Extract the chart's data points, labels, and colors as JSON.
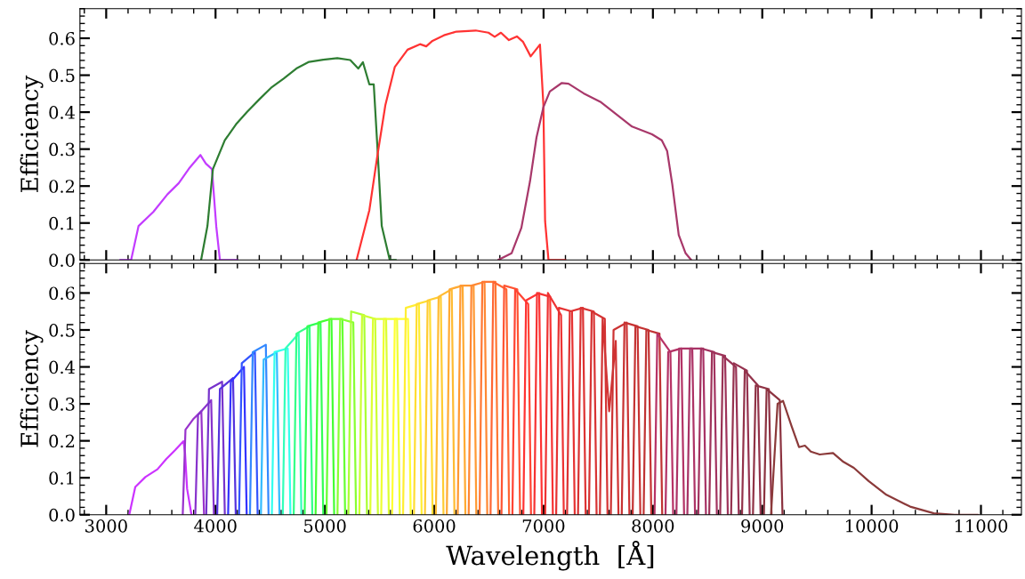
{
  "chart_data": [
    {
      "type": "line",
      "ylabel": "Efficiency",
      "xlim": [
        2760,
        11370
      ],
      "xticks": [
        3000,
        4000,
        5000,
        6000,
        7000,
        8000,
        9000,
        10000,
        11000
      ],
      "ylim": [
        0,
        0.68
      ],
      "yticks": [
        {
          "value": 0,
          "label": "0.0"
        },
        0.1,
        0.2,
        0.3,
        0.4,
        0.5,
        0.6
      ],
      "tick_labels": "y",
      "series": [
        {
          "color": "#c33cff",
          "x": [
            3127,
            3228,
            3296,
            3431,
            3561,
            3664,
            3764,
            3862,
            3911,
            3967,
            4007,
            4040,
            4200
          ],
          "values": [
            0,
            0,
            0.092,
            0.13,
            0.178,
            0.208,
            0.25,
            0.284,
            0.261,
            0.246,
            0.09,
            0,
            0
          ]
        },
        {
          "color": "#2e7d32",
          "x": [
            3868,
            3926,
            3976,
            4085,
            4187,
            4289,
            4405,
            4508,
            4623,
            4739,
            4855,
            4985,
            5114,
            5232,
            5305,
            5348,
            5407,
            5447,
            5480,
            5520,
            5593,
            5650
          ],
          "values": [
            0,
            0.092,
            0.246,
            0.324,
            0.367,
            0.401,
            0.436,
            0.466,
            0.491,
            0.518,
            0.536,
            0.542,
            0.546,
            0.541,
            0.518,
            0.535,
            0.475,
            0.475,
            0.307,
            0.092,
            0,
            0
          ]
        },
        {
          "color": "#ff3333",
          "x": [
            5290,
            5407,
            5480,
            5553,
            5639,
            5756,
            5870,
            5927,
            5984,
            6089,
            6203,
            6379,
            6496,
            6553,
            6610,
            6683,
            6756,
            6813,
            6882,
            6967,
            6998,
            7014,
            7045,
            7200
          ],
          "values": [
            0,
            0.135,
            0.282,
            0.419,
            0.522,
            0.569,
            0.584,
            0.578,
            0.593,
            0.608,
            0.618,
            0.621,
            0.615,
            0.604,
            0.615,
            0.595,
            0.605,
            0.59,
            0.551,
            0.583,
            0.422,
            0.105,
            0,
            0
          ]
        },
        {
          "color": "#a8386a",
          "x": [
            6585,
            6707,
            6797,
            6876,
            6935,
            6998,
            7057,
            7167,
            7228,
            7366,
            7519,
            7809,
            7992,
            8081,
            8130,
            8177,
            8236,
            8299,
            8350
          ],
          "values": [
            0,
            0.018,
            0.087,
            0.213,
            0.331,
            0.413,
            0.456,
            0.479,
            0.477,
            0.451,
            0.428,
            0.361,
            0.34,
            0.324,
            0.295,
            0.205,
            0.068,
            0.018,
            0
          ]
        }
      ]
    },
    {
      "type": "line",
      "xlabel": "Wavelength  [Å]",
      "ylabel": "Efficiency",
      "xlim": [
        2760,
        11370
      ],
      "xticks": [
        3000,
        4000,
        5000,
        6000,
        7000,
        8000,
        9000,
        10000,
        11000
      ],
      "ylim": [
        0,
        0.68
      ],
      "yticks": [
        {
          "value": 0,
          "label": "0.0"
        },
        0.1,
        0.2,
        0.3,
        0.4,
        0.5,
        0.6
      ],
      "series": [
        {
          "color": "#cc33ff",
          "x": [
            3211,
            3266,
            3358,
            3469,
            3550,
            3631,
            3707,
            3721,
            3740,
            3780
          ],
          "values": [
            0,
            0.075,
            0.102,
            0.123,
            0.151,
            0.175,
            0.199,
            0.167,
            0.07,
            0
          ]
        },
        {
          "color": "#9933cc",
          "x": [
            3700,
            3725,
            3800,
            3870,
            3895
          ],
          "values": [
            0,
            0.23,
            0.26,
            0.28,
            0
          ]
        },
        {
          "color": "#8833cc",
          "x": [
            3815,
            3840,
            3960,
            3985
          ],
          "values": [
            0,
            0.27,
            0.31,
            0
          ]
        },
        {
          "color": "#7733cc",
          "x": [
            3915,
            3940,
            4060,
            4085
          ],
          "values": [
            0,
            0.34,
            0.36,
            0
          ]
        },
        {
          "color": "#5533dd",
          "x": [
            4015,
            4040,
            4160,
            4185
          ],
          "values": [
            0,
            0.34,
            0.37,
            0
          ]
        },
        {
          "color": "#3333ff",
          "x": [
            4115,
            4140,
            4260,
            4285
          ],
          "values": [
            0,
            0.36,
            0.4,
            0
          ]
        },
        {
          "color": "#3355ff",
          "x": [
            4215,
            4240,
            4360,
            4385
          ],
          "values": [
            0,
            0.41,
            0.44,
            0
          ]
        },
        {
          "color": "#3388ff",
          "x": [
            4315,
            4340,
            4460,
            4485
          ],
          "values": [
            0,
            0.44,
            0.46,
            0
          ]
        },
        {
          "color": "#33bbff",
          "x": [
            4415,
            4440,
            4560,
            4585
          ],
          "values": [
            0,
            0.42,
            0.44,
            0
          ]
        },
        {
          "color": "#33ffee",
          "x": [
            4515,
            4540,
            4660,
            4685
          ],
          "values": [
            0,
            0.44,
            0.45,
            0
          ]
        },
        {
          "color": "#33ffbb",
          "x": [
            4615,
            4640,
            4760,
            4785
          ],
          "values": [
            0,
            0.45,
            0.49,
            0
          ]
        },
        {
          "color": "#33ff88",
          "x": [
            4715,
            4740,
            4860,
            4885
          ],
          "values": [
            0,
            0.49,
            0.51,
            0
          ]
        },
        {
          "color": "#33ff55",
          "x": [
            4815,
            4840,
            4960,
            4985
          ],
          "values": [
            0,
            0.51,
            0.52,
            0
          ]
        },
        {
          "color": "#44ff33",
          "x": [
            4915,
            4940,
            5060,
            5085
          ],
          "values": [
            0,
            0.52,
            0.53,
            0
          ]
        },
        {
          "color": "#66ff33",
          "x": [
            5015,
            5040,
            5160,
            5185
          ],
          "values": [
            0,
            0.53,
            0.53,
            0
          ]
        },
        {
          "color": "#88ff33",
          "x": [
            5115,
            5140,
            5260,
            5285
          ],
          "values": [
            0,
            0.53,
            0.52,
            0
          ]
        },
        {
          "color": "#aaff33",
          "x": [
            5215,
            5240,
            5360,
            5385
          ],
          "values": [
            0,
            0.55,
            0.54,
            0
          ]
        },
        {
          "color": "#ccff33",
          "x": [
            5315,
            5340,
            5460,
            5485
          ],
          "values": [
            0,
            0.54,
            0.53,
            0
          ]
        },
        {
          "color": "#ddff33",
          "x": [
            5415,
            5440,
            5560,
            5585
          ],
          "values": [
            0,
            0.53,
            0.53,
            0
          ]
        },
        {
          "color": "#eeff33",
          "x": [
            5515,
            5540,
            5660,
            5685
          ],
          "values": [
            0,
            0.53,
            0.53,
            0
          ]
        },
        {
          "color": "#ffff33",
          "x": [
            5615,
            5640,
            5760,
            5785
          ],
          "values": [
            0,
            0.53,
            0.53,
            0
          ]
        },
        {
          "color": "#ffee33",
          "x": [
            5715,
            5740,
            5860,
            5885
          ],
          "values": [
            0,
            0.56,
            0.57,
            0
          ]
        },
        {
          "color": "#ffdd33",
          "x": [
            5815,
            5840,
            5960,
            5985
          ],
          "values": [
            0,
            0.57,
            0.58,
            0
          ]
        },
        {
          "color": "#ffcc33",
          "x": [
            5915,
            5940,
            6060,
            6085
          ],
          "values": [
            0,
            0.58,
            0.59,
            0
          ]
        },
        {
          "color": "#ffbb33",
          "x": [
            6015,
            6040,
            6160,
            6185
          ],
          "values": [
            0,
            0.59,
            0.61,
            0
          ]
        },
        {
          "color": "#ffaa33",
          "x": [
            6115,
            6140,
            6260,
            6285
          ],
          "values": [
            0,
            0.61,
            0.62,
            0
          ]
        },
        {
          "color": "#ff9933",
          "x": [
            6215,
            6240,
            6360,
            6385
          ],
          "values": [
            0,
            0.62,
            0.62,
            0
          ]
        },
        {
          "color": "#ff8833",
          "x": [
            6315,
            6340,
            6460,
            6485
          ],
          "values": [
            0,
            0.62,
            0.63,
            0
          ]
        },
        {
          "color": "#ff7733",
          "x": [
            6415,
            6440,
            6560,
            6585
          ],
          "values": [
            0,
            0.63,
            0.63,
            0
          ]
        },
        {
          "color": "#ff6633",
          "x": [
            6515,
            6540,
            6660,
            6685
          ],
          "values": [
            0,
            0.63,
            0.61,
            0
          ]
        },
        {
          "color": "#ff5533",
          "x": [
            6615,
            6640,
            6760,
            6785
          ],
          "values": [
            0,
            0.62,
            0.61,
            0
          ]
        },
        {
          "color": "#ff4433",
          "x": [
            6715,
            6740,
            6860,
            6885
          ],
          "values": [
            0,
            0.61,
            0.57,
            0
          ]
        },
        {
          "color": "#ff3333",
          "x": [
            6815,
            6840,
            6960,
            6985
          ],
          "values": [
            0,
            0.58,
            0.6,
            0
          ]
        },
        {
          "color": "#f73333",
          "x": [
            6915,
            6940,
            7060,
            7085
          ],
          "values": [
            0,
            0.6,
            0.59,
            0
          ]
        },
        {
          "color": "#ee3333",
          "x": [
            7015,
            7040,
            7160,
            7185
          ],
          "values": [
            0,
            0.6,
            0.54,
            0
          ]
        },
        {
          "color": "#e63333",
          "x": [
            7115,
            7140,
            7260,
            7285
          ],
          "values": [
            0,
            0.56,
            0.55,
            0
          ]
        },
        {
          "color": "#dd3333",
          "x": [
            7215,
            7240,
            7360,
            7385
          ],
          "values": [
            0,
            0.55,
            0.56,
            0
          ]
        },
        {
          "color": "#d93333",
          "x": [
            7315,
            7340,
            7460,
            7485
          ],
          "values": [
            0,
            0.56,
            0.55,
            0
          ]
        },
        {
          "color": "#d53333",
          "x": [
            7415,
            7440,
            7560,
            7585
          ],
          "values": [
            0,
            0.55,
            0.53,
            0
          ]
        },
        {
          "color": "#d03333",
          "x": [
            7515,
            7540,
            7600,
            7660,
            7685
          ],
          "values": [
            0,
            0.53,
            0.28,
            0.47,
            0
          ]
        },
        {
          "color": "#cc3333",
          "x": [
            7615,
            7640,
            7760,
            7785
          ],
          "values": [
            0,
            0.5,
            0.52,
            0
          ]
        },
        {
          "color": "#c83333",
          "x": [
            7715,
            7740,
            7860,
            7885
          ],
          "values": [
            0,
            0.52,
            0.51,
            0
          ]
        },
        {
          "color": "#c43333",
          "x": [
            7815,
            7840,
            7960,
            7985
          ],
          "values": [
            0,
            0.51,
            0.5,
            0
          ]
        },
        {
          "color": "#c03333",
          "x": [
            7915,
            7940,
            8060,
            8085
          ],
          "values": [
            0,
            0.5,
            0.49,
            0
          ]
        },
        {
          "color": "#b83366",
          "x": [
            8015,
            8040,
            8160,
            8185
          ],
          "values": [
            0,
            0.49,
            0.44,
            0
          ]
        },
        {
          "color": "#b33366",
          "x": [
            8115,
            8140,
            8260,
            8285
          ],
          "values": [
            0,
            0.44,
            0.45,
            0
          ]
        },
        {
          "color": "#ad3366",
          "x": [
            8215,
            8240,
            8360,
            8385
          ],
          "values": [
            0,
            0.45,
            0.45,
            0
          ]
        },
        {
          "color": "#a83366",
          "x": [
            8315,
            8340,
            8460,
            8485
          ],
          "values": [
            0,
            0.45,
            0.45,
            0
          ]
        },
        {
          "color": "#a33360",
          "x": [
            8415,
            8440,
            8560,
            8585
          ],
          "values": [
            0,
            0.45,
            0.44,
            0
          ]
        },
        {
          "color": "#9e335a",
          "x": [
            8515,
            8540,
            8660,
            8685
          ],
          "values": [
            0,
            0.44,
            0.43,
            0
          ]
        },
        {
          "color": "#993355",
          "x": [
            8615,
            8640,
            8760,
            8785
          ],
          "values": [
            0,
            0.43,
            0.4,
            0
          ]
        },
        {
          "color": "#963350",
          "x": [
            8715,
            8740,
            8860,
            8885
          ],
          "values": [
            0,
            0.41,
            0.39,
            0
          ]
        },
        {
          "color": "#93334b",
          "x": [
            8815,
            8840,
            8960,
            8985
          ],
          "values": [
            0,
            0.39,
            0.35,
            0
          ]
        },
        {
          "color": "#903346",
          "x": [
            8915,
            8940,
            9060,
            9085
          ],
          "values": [
            0,
            0.35,
            0.34,
            0
          ]
        },
        {
          "color": "#8c3340",
          "x": [
            9015,
            9040,
            9160,
            9185
          ],
          "values": [
            0,
            0.34,
            0.31,
            0
          ]
        },
        {
          "color": "#8b3a3a",
          "x": [
            9080,
            9140,
            9190,
            9268,
            9336,
            9390,
            9444,
            9525,
            9647,
            9742,
            9837,
            9973,
            10135,
            10352,
            10569,
            10759,
            10975
          ],
          "values": [
            0,
            0.3,
            0.308,
            0.24,
            0.183,
            0.187,
            0.171,
            0.163,
            0.167,
            0.143,
            0.127,
            0.091,
            0.054,
            0.022,
            0.004,
            0,
            0
          ]
        }
      ]
    }
  ]
}
